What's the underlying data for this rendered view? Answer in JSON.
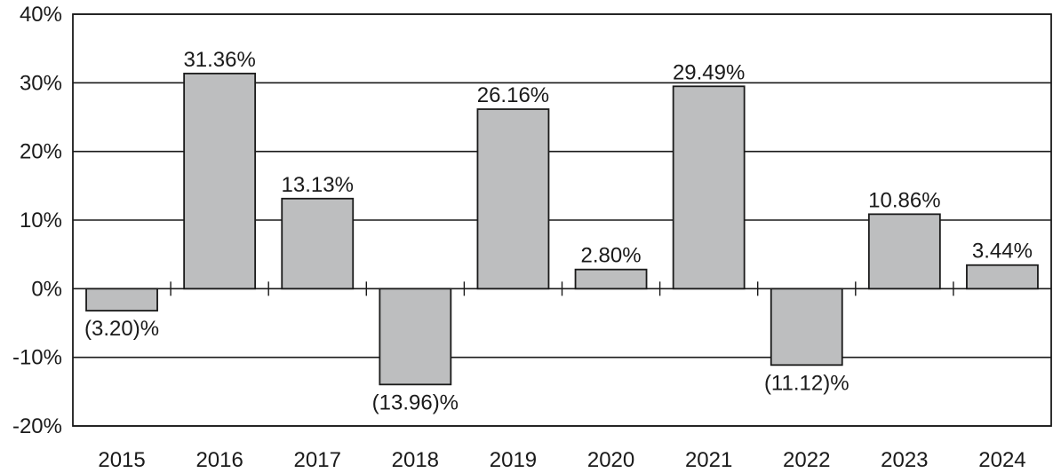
{
  "chart_data": {
    "type": "bar",
    "title": "",
    "xlabel": "",
    "ylabel": "",
    "categories": [
      "2015",
      "2016",
      "2017",
      "2018",
      "2019",
      "2020",
      "2021",
      "2022",
      "2023",
      "2024"
    ],
    "values": [
      -3.2,
      31.36,
      13.13,
      -13.96,
      26.16,
      2.8,
      29.49,
      -11.12,
      10.86,
      3.44
    ],
    "data_labels": [
      "(3.20)%",
      "31.36%",
      "13.13%",
      "(13.96)%",
      "26.16%",
      "2.80%",
      "29.49%",
      "(11.12)%",
      "10.86%",
      "3.44%"
    ],
    "ylim": [
      -20,
      40
    ],
    "y_ticks": [
      40,
      30,
      20,
      10,
      0,
      -10,
      -20
    ],
    "y_tick_labels": [
      "40%",
      "30%",
      "20%",
      "10%",
      "0%",
      "-10%",
      "-20%"
    ],
    "grid": true,
    "legend": "none",
    "colors": {
      "bar_fill": "#bdbebf",
      "bar_stroke": "#1a1a1a",
      "grid": "#1a1a1a",
      "text": "#1a1a1a"
    }
  }
}
